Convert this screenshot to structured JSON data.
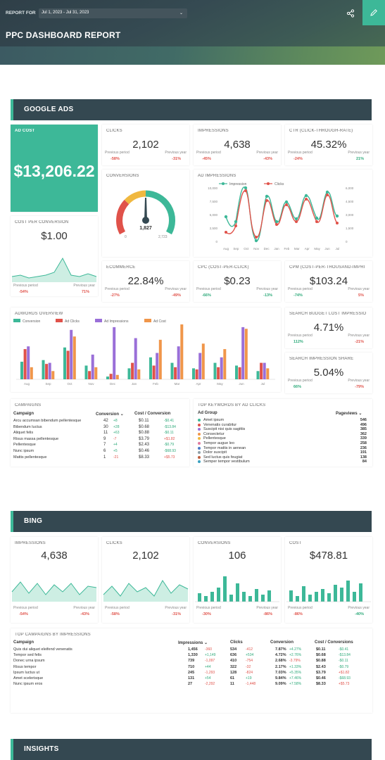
{
  "header": {
    "report_for": "REPORT FOR",
    "date_range": "Jul 1, 2023 - Jul 31, 2023",
    "title": "PPC DASHBOARD REPORT"
  },
  "google": {
    "section_title": "GOOGLE ADS",
    "ad_cost": {
      "label": "AD COST",
      "value": "$13,206.22"
    },
    "clicks": {
      "label": "CLICKS",
      "value": "2,102",
      "pp": "Previous period",
      "py": "Previous year",
      "ppv": "-58%",
      "pyv": "-31%"
    },
    "impressions": {
      "label": "IMPRESSIONS",
      "value": "4,638",
      "pp": "Previous period",
      "py": "Previous year",
      "ppv": "-45%",
      "pyv": "-43%"
    },
    "ctr": {
      "label": "CTR (CLICK-THROUGH-RATE)",
      "value": "45.32%",
      "pp": "Previous period",
      "py": "Previous year",
      "ppv": "-24%",
      "pyv": "21%"
    },
    "conversions": {
      "label": "CONVERSIONS",
      "value": "1,827",
      "min": "0",
      "max": "2,723"
    },
    "ad_impressions": {
      "label": "AD IMPRESSIONS",
      "legend": [
        "Impression",
        "Clicks"
      ],
      "y_left": [
        "10,000",
        "7,500",
        "5,000",
        "2,500",
        "0"
      ],
      "y_right": [
        "6,000",
        "4,500",
        "3,000",
        "1,500",
        "0"
      ],
      "months": [
        "Aug",
        "Sep",
        "Oct",
        "Nov",
        "Dec",
        "Jan",
        "Feb",
        "Mar",
        "Apr",
        "May",
        "Jun",
        "Jul"
      ]
    },
    "cpc_conv": {
      "label": "COST PER CONVERSION",
      "value": "$1.00",
      "pp": "Previous period",
      "py": "Previous year",
      "ppv": "-54%",
      "pyv": "71%"
    },
    "ecommerce": {
      "label": "ECOMMERCE",
      "value": "22.84%",
      "pp": "Previous period",
      "py": "Previous year",
      "ppv": "-27%",
      "pyv": "-49%"
    },
    "cpc": {
      "label": "CPC (COST-PER-CLICK)",
      "value": "$0.23",
      "pp": "Previous period",
      "py": "Previous year",
      "ppv": "-66%",
      "pyv": "-13%"
    },
    "cpm": {
      "label": "CPM (COST-PER-THOUSAND-IMPRI",
      "value": "$103.24",
      "pp": "Previous period",
      "py": "Previous year",
      "ppv": "-74%",
      "pyv": "5%"
    },
    "adwords": {
      "label": "ADWORDS OVERVIEW",
      "legend": [
        "Conversion",
        "Ad Clicks",
        "Ad Impressions",
        "Ad Cost"
      ],
      "months": [
        "Aug",
        "Sep",
        "Oct",
        "Nov",
        "Dec",
        "Jan",
        "Feb",
        "Mar",
        "Apr",
        "May",
        "Jun",
        "Jul"
      ]
    },
    "sbli": {
      "label": "SEARCH BUDGET LOST IMPRESSIO",
      "value": "4.71%",
      "pp": "Previous period",
      "py": "Previous year",
      "ppv": "112%",
      "pyv": "-21%"
    },
    "sis": {
      "label": "SEARCH IMPRESSION SHARE",
      "value": "5.04%",
      "pp": "Previous period",
      "py": "Previous year",
      "ppv": "66%",
      "pyv": "-79%"
    },
    "campaigns": {
      "label": "CAMPAIGNS",
      "h": [
        "Campaign",
        "Conversion",
        "Cost / Conversion"
      ],
      "rows": [
        [
          "Arcu accumsan bibendum pellentesque",
          "42",
          "+8",
          "$0.11",
          "-$0.41"
        ],
        [
          "Bibendum luctus",
          "30",
          "+28",
          "$0.68",
          "-$13.84"
        ],
        [
          "Aliquet felis",
          "11",
          "+63",
          "$0.88",
          "-$0.11"
        ],
        [
          "Risus massa pellentesque",
          "9",
          "-7",
          "$3.79",
          "+$1.82"
        ],
        [
          "Pellentesque",
          "7",
          "+4",
          "$2.43",
          "-$0.79"
        ],
        [
          "Nunc ipsum",
          "6",
          "+5",
          "$0.46",
          "-$68.93"
        ],
        [
          "Mattis pellentesque",
          "1",
          "-21",
          "$8.33",
          "+$5.73"
        ]
      ]
    },
    "keywords": {
      "label": "TOP KEYWORDS BY AD CLICKS",
      "h": [
        "Ad Group",
        "Pageviews"
      ],
      "rows": [
        [
          "Amet ipsum",
          "546"
        ],
        [
          "Venenatis curabitur",
          "496"
        ],
        [
          "Suscipit nisi quis sagittis",
          "385"
        ],
        [
          "Consectetur",
          "362"
        ],
        [
          "Pellentesque",
          "339"
        ],
        [
          "Tempor augue leo",
          "258"
        ],
        [
          "Tempor mattis in aenean",
          "236"
        ],
        [
          "Dolor suscipit",
          "191"
        ],
        [
          "Sed luctus quis feugiat",
          "138"
        ],
        [
          "Semper tempor vestibulum",
          "84"
        ]
      ]
    }
  },
  "bing": {
    "section_title": "BING",
    "impressions": {
      "label": "IMPRESSIONS",
      "value": "4,638",
      "pp": "Previous period",
      "py": "Previous year",
      "ppv": "-54%",
      "pyv": "-43%"
    },
    "clicks": {
      "label": "CLICKS",
      "value": "2,102",
      "pp": "Previous period",
      "py": "Previous year",
      "ppv": "-58%",
      "pyv": "-31%"
    },
    "conversions": {
      "label": "CONVERSIONS",
      "value": "106",
      "pp": "Previous period",
      "py": "Previous year",
      "ppv": "-30%",
      "pyv": "-86%"
    },
    "cost": {
      "label": "COST",
      "value": "$478.81",
      "pp": "Previous period",
      "py": "Previous year",
      "ppv": "-86%",
      "pyv": "-40%"
    },
    "top": {
      "label": "TOP CAMPAIGNS BY IMPRESSIONS",
      "h": [
        "Campaign",
        "Impressions",
        "Clicks",
        "Conversion",
        "Cost / Conversions"
      ],
      "rows": [
        [
          "Quis dui aliquet eleifend venenatis",
          "1,456",
          "-360",
          "534",
          "-412",
          "7.87%",
          "+4.27%",
          "$0.11",
          "-$0.41"
        ],
        [
          "Tempor sed felis",
          "1,330",
          "+1,149",
          "636",
          "+534",
          "4.72%",
          "+2.76%",
          "$0.68",
          "-$13.84"
        ],
        [
          "Donec urna ipsum",
          "739",
          "-1,097",
          "410",
          "-754",
          "2.68%",
          "-3.79%",
          "$0.88",
          "-$0.11"
        ],
        [
          "Risus tempor",
          "710",
          "+44",
          "322",
          "-32",
          "2.17%",
          "+1.33%",
          "$2.43",
          "-$0.79"
        ],
        [
          "Ipsum luctus ut",
          "245",
          "-1,293",
          "128",
          "-824",
          "7.03%",
          "+5.35%",
          "$3.79",
          "+$1.82"
        ],
        [
          "Amet scelerisque",
          "131",
          "+54",
          "61",
          "+19",
          "9.84%",
          "+7.46%",
          "$0.46",
          "-$68.93"
        ],
        [
          "Nunc ipsum eros",
          "27",
          "-2,292",
          "11",
          "-1,448",
          "9.09%",
          "+7.58%",
          "$8.33",
          "+$5.73"
        ]
      ]
    }
  },
  "insights": {
    "section_title": "INSIGHTS"
  },
  "colors": {
    "teal": "#3db898",
    "red": "#e0524a",
    "purple": "#9a6fd8",
    "orange": "#f0964a",
    "dark": "#344851"
  }
}
